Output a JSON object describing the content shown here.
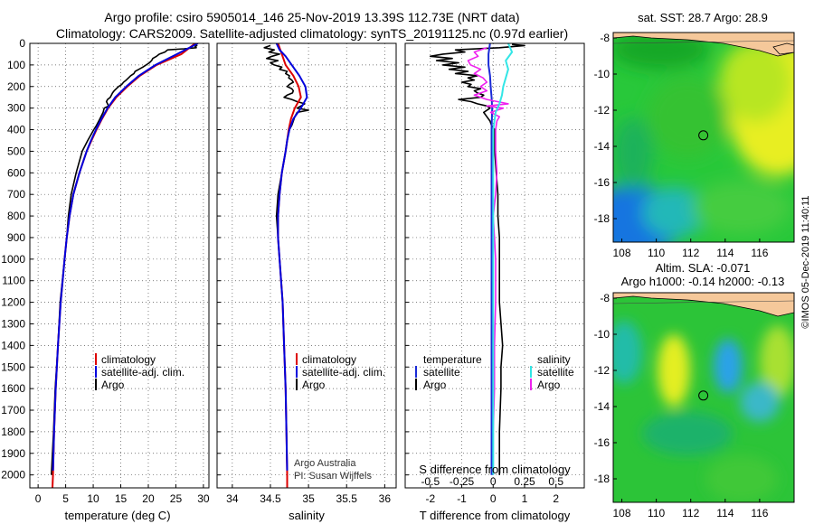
{
  "header": {
    "title_line1": "Argo profile: csiro 5905014_146 25-Nov-2019 13.39S 112.73E (NRT data)",
    "title_line2": "Climatology: CARS2009. Satellite-adjusted climatology: synTS_20191125.nc (0.97d earlier)"
  },
  "colors": {
    "argo": "#000000",
    "climatology": "#dd0000",
    "satellite": "#0000dd",
    "sal_diff": "#ee22ee",
    "temp_diff_sat": "#1a2bd6",
    "sal_diff_sat": "#33e6e6"
  },
  "depth_axis": {
    "ticks": [
      "0",
      "100",
      "200",
      "300",
      "400",
      "500",
      "600",
      "700",
      "800",
      "900",
      "1000",
      "1100",
      "1200",
      "1300",
      "1400",
      "1500",
      "1600",
      "1700",
      "1800",
      "1900",
      "2000"
    ],
    "range": [
      0,
      2060
    ]
  },
  "chart_data": [
    {
      "type": "line",
      "name": "temperature",
      "xlabel": "temperature (deg C)",
      "xlim": [
        -1.5,
        31
      ],
      "xticks": [
        "0",
        "5",
        "10",
        "15",
        "20",
        "25",
        "30"
      ],
      "xtick_values": [
        0,
        5,
        10,
        15,
        20,
        25,
        30
      ],
      "legend": [
        "climatology",
        "satellite-adj. clim.",
        "Argo"
      ],
      "series": [
        {
          "name": "Argo",
          "color": "#000000",
          "depth": [
            5,
            10,
            15,
            20,
            25,
            30,
            40,
            50,
            60,
            70,
            80,
            90,
            100,
            110,
            120,
            130,
            140,
            150,
            160,
            170,
            180,
            190,
            200,
            210,
            220,
            230,
            240,
            250,
            260,
            270,
            280,
            290,
            300,
            320,
            340,
            360,
            380,
            400,
            450,
            500,
            600,
            700,
            800,
            900,
            1000,
            1200,
            1400,
            1600,
            1800,
            2000
          ],
          "values": [
            28.6,
            28.8,
            28.5,
            28.7,
            26.5,
            23.5,
            23.0,
            22.0,
            21.5,
            20.8,
            20.6,
            20.2,
            19.6,
            19.0,
            18.3,
            17.6,
            17.4,
            16.8,
            16.4,
            16.0,
            15.5,
            15.2,
            14.6,
            14.2,
            13.8,
            13.5,
            13.3,
            13.1,
            12.6,
            12.4,
            12.6,
            12.8,
            12.0,
            11.8,
            11.4,
            11.0,
            10.6,
            10.1,
            9.0,
            8.0,
            6.9,
            6.0,
            5.5,
            5.2,
            4.8,
            4.0,
            3.6,
            3.1,
            2.8,
            2.4
          ]
        },
        {
          "name": "climatology",
          "color": "#dd0000",
          "depth": [
            0,
            50,
            100,
            150,
            200,
            250,
            300,
            350,
            400,
            450,
            500,
            600,
            700,
            800,
            900,
            1000,
            1200,
            1400,
            1600,
            1800,
            2000,
            2060
          ],
          "values": [
            28.5,
            26.0,
            21.5,
            18.5,
            16.2,
            14.2,
            12.7,
            11.6,
            10.6,
            9.7,
            8.8,
            7.5,
            6.4,
            5.7,
            5.2,
            4.8,
            4.1,
            3.6,
            3.2,
            2.9,
            2.7,
            2.6
          ]
        },
        {
          "name": "satellite-adj. clim.",
          "color": "#0000dd",
          "depth": [
            0,
            50,
            100,
            150,
            200,
            250,
            300,
            350,
            400,
            450,
            500,
            600,
            700,
            800,
            900,
            1000,
            1200,
            1400,
            1600,
            1800,
            1980
          ],
          "values": [
            29.0,
            25.2,
            21.3,
            18.3,
            16.0,
            14.0,
            12.6,
            11.5,
            10.5,
            9.6,
            8.8,
            7.5,
            6.4,
            5.7,
            5.2,
            4.8,
            4.1,
            3.6,
            3.2,
            2.9,
            2.7
          ]
        }
      ]
    },
    {
      "type": "line",
      "name": "salinity",
      "xlabel": "salinity",
      "xlim": [
        33.8,
        36.15
      ],
      "xticks": [
        "34",
        "34.5",
        "35",
        "35.5",
        "36"
      ],
      "xtick_values": [
        34,
        34.5,
        35,
        35.5,
        36
      ],
      "legend": [
        "climatology",
        "satellite-adj. clim.",
        "Argo"
      ],
      "annotations": [
        "Argo Australia",
        "PI: Susan Wijffels"
      ],
      "series": [
        {
          "name": "Argo",
          "color": "#000000",
          "depth": [
            10,
            20,
            30,
            40,
            50,
            60,
            70,
            80,
            90,
            100,
            110,
            120,
            130,
            140,
            150,
            160,
            170,
            180,
            190,
            200,
            210,
            220,
            230,
            240,
            250,
            260,
            270,
            280,
            290,
            300,
            310,
            320,
            340,
            360,
            380,
            400,
            450,
            500,
            600,
            700,
            800,
            900,
            1000,
            1200,
            1400,
            1600,
            1800,
            2000
          ],
          "values": [
            34.5,
            34.42,
            34.55,
            34.48,
            34.62,
            34.52,
            34.45,
            34.6,
            34.5,
            34.55,
            34.65,
            34.62,
            34.72,
            34.7,
            34.75,
            34.74,
            34.78,
            34.8,
            34.75,
            34.72,
            34.78,
            34.8,
            34.79,
            34.72,
            34.68,
            34.78,
            34.85,
            34.95,
            34.9,
            34.85,
            35.0,
            34.85,
            34.82,
            34.8,
            34.78,
            34.75,
            34.72,
            34.7,
            34.65,
            34.6,
            34.58,
            34.6,
            34.62,
            34.66,
            34.68,
            34.7,
            34.71,
            34.72
          ]
        },
        {
          "name": "climatology",
          "color": "#dd0000",
          "depth": [
            0,
            50,
            100,
            150,
            200,
            250,
            300,
            350,
            400,
            450,
            500,
            600,
            700,
            800,
            900,
            1000,
            1200,
            1400,
            1600,
            1800,
            2000,
            2060
          ],
          "values": [
            34.6,
            34.65,
            34.7,
            34.8,
            34.87,
            34.9,
            34.82,
            34.77,
            34.74,
            34.72,
            34.7,
            34.65,
            34.62,
            34.6,
            34.6,
            34.62,
            34.66,
            34.68,
            34.7,
            34.71,
            34.72,
            34.72
          ]
        },
        {
          "name": "satellite-adj. clim.",
          "color": "#0000dd",
          "depth": [
            0,
            30,
            60,
            100,
            150,
            200,
            250,
            300,
            350,
            400,
            450,
            500,
            600,
            700,
            800,
            900,
            1000,
            1200,
            1400,
            1600,
            1800,
            1980
          ],
          "values": [
            34.58,
            34.62,
            34.7,
            34.78,
            34.88,
            34.96,
            34.98,
            34.9,
            34.8,
            34.75,
            34.72,
            34.7,
            34.65,
            34.62,
            34.6,
            34.6,
            34.62,
            34.66,
            34.68,
            34.7,
            34.71,
            34.72
          ]
        }
      ]
    },
    {
      "type": "line",
      "name": "difference from climatology",
      "xlabel": "T difference from climatology",
      "xlabel_top": "S difference from climatology",
      "xlim": [
        -2.8,
        2.9
      ],
      "xticks": [
        "-2",
        "-1",
        "0",
        "1",
        "2"
      ],
      "xtick_values": [
        -2,
        -1,
        0,
        1,
        2
      ],
      "sal_xticks": [
        "-0.5",
        "-0.25",
        "0",
        "0.25",
        "0.5"
      ],
      "sal_xtick_values": [
        -0.5,
        -0.25,
        0,
        0.25,
        0.5
      ],
      "legend_temperature": [
        "temperature",
        "satellite",
        "Argo"
      ],
      "legend_salinity": [
        "salinity",
        "satellite",
        "Argo"
      ],
      "series": [
        {
          "name": "Argo T diff",
          "color": "#000000",
          "depth": [
            5,
            10,
            20,
            30,
            40,
            50,
            60,
            70,
            80,
            90,
            100,
            110,
            120,
            130,
            140,
            150,
            160,
            170,
            180,
            190,
            200,
            210,
            220,
            230,
            240,
            250,
            260,
            270,
            280,
            290,
            300,
            320,
            340,
            360,
            380,
            400,
            450,
            500,
            600,
            700,
            800,
            900,
            1000,
            1200,
            1400,
            1500,
            1600,
            1800,
            2000
          ],
          "values": [
            0.6,
            1.0,
            0.2,
            -1.2,
            -0.9,
            -1.6,
            -2.0,
            -1.3,
            -1.8,
            -1.1,
            -1.6,
            -0.9,
            -1.4,
            -0.8,
            -1.2,
            -0.5,
            -0.8,
            -0.6,
            -1.0,
            -0.7,
            -0.8,
            -0.4,
            -0.6,
            -0.5,
            -0.3,
            -0.4,
            -1.1,
            -0.7,
            -0.5,
            -0.2,
            -0.1,
            -0.3,
            -0.2,
            -0.1,
            -0.05,
            0.05,
            0.05,
            0.05,
            0.1,
            0.15,
            0.15,
            0.2,
            0.2,
            0.2,
            0.3,
            0.25,
            0.25,
            0.2,
            0.2
          ]
        },
        {
          "name": "satellite T diff",
          "color": "#1a2bd6",
          "depth": [
            0,
            50,
            100,
            150,
            200,
            250,
            300,
            400,
            500,
            600,
            800,
            1000,
            1500,
            2000
          ],
          "values": [
            -0.1,
            -0.15,
            -0.15,
            -0.1,
            -0.08,
            -0.05,
            -0.03,
            -0.05,
            -0.05,
            -0.05,
            -0.05,
            -0.05,
            -0.05,
            -0.05
          ]
        },
        {
          "name": "Argo S diff",
          "color": "#ee22ee",
          "depth": [
            20,
            40,
            60,
            80,
            100,
            120,
            140,
            160,
            180,
            200,
            220,
            240,
            260,
            280,
            290,
            300,
            320,
            340,
            360,
            400,
            500,
            600,
            700,
            800,
            900,
            1000,
            1200,
            1400,
            1600,
            1800,
            2000
          ],
          "values": [
            -0.05,
            -0.15,
            -0.12,
            -0.2,
            -0.18,
            -0.1,
            -0.15,
            -0.08,
            -0.05,
            -0.1,
            -0.05,
            -0.15,
            -0.05,
            0.12,
            -0.05,
            0.08,
            -0.02,
            0.05,
            0.03,
            0.02,
            0.02,
            0.03,
            0.02,
            0.0,
            0.01,
            0.02,
            0.02,
            0.01,
            0.01,
            0.0,
            0.0
          ]
        },
        {
          "name": "satellite S diff",
          "color": "#33e6e6",
          "depth": [
            0,
            40,
            80,
            120,
            160,
            200,
            240,
            280,
            320,
            400,
            500,
            600,
            700,
            800,
            1000,
            1500,
            2000
          ],
          "values": [
            0.12,
            0.15,
            0.1,
            0.12,
            0.1,
            0.08,
            0.07,
            0.05,
            0.02,
            0.0,
            0.0,
            0.0,
            0.0,
            0.0,
            0.0,
            0.0,
            0.0
          ]
        }
      ]
    },
    {
      "type": "heatmap",
      "name": "sst map",
      "title": "sat. SST: 28.7 Argo: 28.9",
      "xticks": [
        "108",
        "110",
        "112",
        "114",
        "116"
      ],
      "xtick_values": [
        108,
        110,
        112,
        114,
        116
      ],
      "yticks": [
        "-8",
        "-10",
        "-12",
        "-14",
        "-16",
        "-18"
      ],
      "ytick_values": [
        -8,
        -10,
        -12,
        -14,
        -16,
        -18
      ],
      "xlim": [
        107.5,
        118
      ],
      "ylim": [
        -19.3,
        -7.7
      ],
      "marker": {
        "lon": 112.73,
        "lat": -13.39
      }
    },
    {
      "type": "heatmap",
      "name": "sla map",
      "title_line1": "Altim. SLA: -0.071",
      "title_line2": "Argo h1000: -0.14 h2000: -0.13",
      "xticks": [
        "108",
        "110",
        "112",
        "114",
        "116"
      ],
      "xtick_values": [
        108,
        110,
        112,
        114,
        116
      ],
      "yticks": [
        "-8",
        "-10",
        "-12",
        "-14",
        "-16",
        "-18"
      ],
      "ytick_values": [
        -8,
        -10,
        -12,
        -14,
        -16,
        -18
      ],
      "xlim": [
        107.5,
        118
      ],
      "ylim": [
        -19.3,
        -7.7
      ],
      "marker": {
        "lon": 112.73,
        "lat": -13.39
      }
    }
  ],
  "footer": {
    "credit": "©IMOS 05-Dec-2019 11:40:11"
  }
}
